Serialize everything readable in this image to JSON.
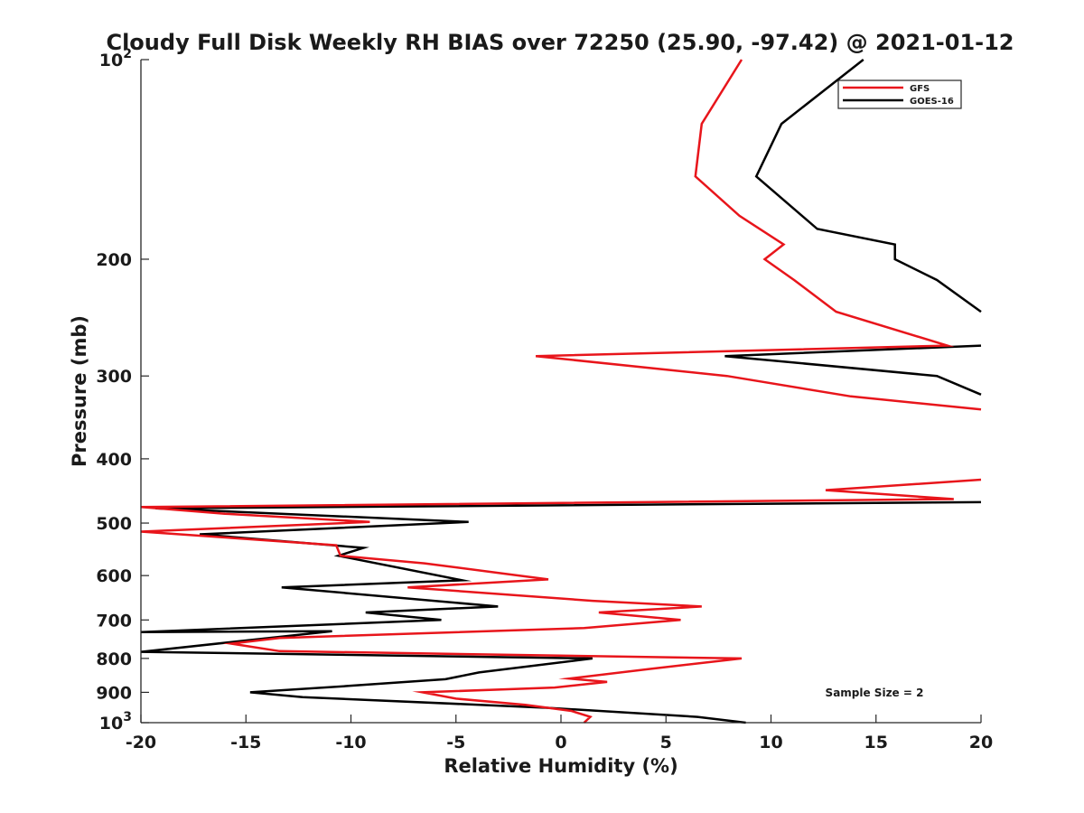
{
  "chart_data": {
    "type": "line",
    "title": "Cloudy Full Disk Weekly RH BIAS over 72250 (25.90, -97.42) @ 2021-01-12",
    "xlabel": "Relative Humidity (%)",
    "ylabel": "Pressure (mb)",
    "xlim": [
      -20,
      20
    ],
    "ylim": [
      100,
      1000
    ],
    "yscale": "log",
    "y_reversed": true,
    "grid": false,
    "legend_position": "top-right",
    "x_ticks": [
      "-20",
      "-15",
      "-10",
      "-5",
      "0",
      "5",
      "10",
      "15",
      "20"
    ],
    "y_ticks": [
      {
        "value": 100,
        "base": "10",
        "exp": "2"
      },
      {
        "value": 200,
        "label": "200"
      },
      {
        "value": 300,
        "label": "300"
      },
      {
        "value": 400,
        "label": "400"
      },
      {
        "value": 500,
        "label": "500"
      },
      {
        "value": 600,
        "label": "600"
      },
      {
        "value": 700,
        "label": "700"
      },
      {
        "value": 800,
        "label": "800"
      },
      {
        "value": 900,
        "label": "900"
      },
      {
        "value": 1000,
        "base": "10",
        "exp": "3"
      }
    ],
    "annotation": "Sample Size = 2",
    "series": [
      {
        "name": "GFS",
        "color": "#e8151b",
        "points": [
          [
            8.6,
            100
          ],
          [
            6.7,
            125
          ],
          [
            6.4,
            150
          ],
          [
            8.5,
            172
          ],
          [
            10.6,
            190
          ],
          [
            9.7,
            200
          ],
          [
            11.1,
            215
          ],
          [
            13.1,
            240
          ],
          [
            18.4,
            270
          ],
          [
            -1.2,
            280
          ],
          [
            7.9,
            300
          ],
          [
            13.8,
            322
          ],
          [
            20,
            337
          ],
          [
            null,
            null
          ],
          [
            20,
            430
          ],
          [
            12.6,
            446
          ],
          [
            18.7,
            460
          ],
          [
            -20,
            473
          ],
          [
            -16,
            484
          ],
          [
            -9.1,
            498
          ],
          [
            -20,
            515
          ],
          [
            -10.7,
            540
          ],
          [
            -10.5,
            560
          ],
          [
            -6.5,
            575
          ],
          [
            -0.6,
            608
          ],
          [
            -7.3,
            625
          ],
          [
            1.5,
            655
          ],
          [
            6.7,
            668
          ],
          [
            1.8,
            682
          ],
          [
            5.7,
            700
          ],
          [
            1.1,
            720
          ],
          [
            -13.4,
            745
          ],
          [
            -15.7,
            760
          ],
          [
            -13.4,
            780
          ],
          [
            8.6,
            800
          ],
          [
            4.2,
            830
          ],
          [
            0.4,
            858
          ],
          [
            2.2,
            868
          ],
          [
            -0.3,
            885
          ],
          [
            -6.6,
            900
          ],
          [
            -5,
            920
          ],
          [
            -1.7,
            940
          ],
          [
            0.5,
            960
          ],
          [
            1.4,
            980
          ],
          [
            1.1,
            1000
          ]
        ]
      },
      {
        "name": "GOES-16",
        "color": "#000000",
        "points": [
          [
            14.4,
            100
          ],
          [
            10.5,
            125
          ],
          [
            9.3,
            150
          ],
          [
            12.2,
            180
          ],
          [
            15.9,
            190
          ],
          [
            15.9,
            200
          ],
          [
            17.9,
            215
          ],
          [
            20,
            240
          ],
          [
            null,
            null
          ],
          [
            20,
            270
          ],
          [
            7.8,
            280
          ],
          [
            17.9,
            300
          ],
          [
            20,
            320
          ],
          [
            null,
            null
          ],
          [
            20,
            465
          ],
          [
            -19.3,
            475
          ],
          [
            -4.4,
            498
          ],
          [
            -17.2,
            520
          ],
          [
            -9.4,
            545
          ],
          [
            -10.6,
            560
          ],
          [
            -4.7,
            610
          ],
          [
            -13.3,
            625
          ],
          [
            -3,
            668
          ],
          [
            -9.3,
            682
          ],
          [
            -5.7,
            700
          ],
          [
            -20,
            730
          ],
          [
            -10.9,
            728
          ],
          [
            -20,
            782
          ],
          [
            1.5,
            800
          ],
          [
            -3.9,
            840
          ],
          [
            -5.5,
            860
          ],
          [
            -10.1,
            880
          ],
          [
            -14.8,
            900
          ],
          [
            -12.3,
            915
          ],
          [
            -0.6,
            950
          ],
          [
            6.5,
            980
          ],
          [
            8.8,
            1000
          ]
        ]
      }
    ]
  }
}
